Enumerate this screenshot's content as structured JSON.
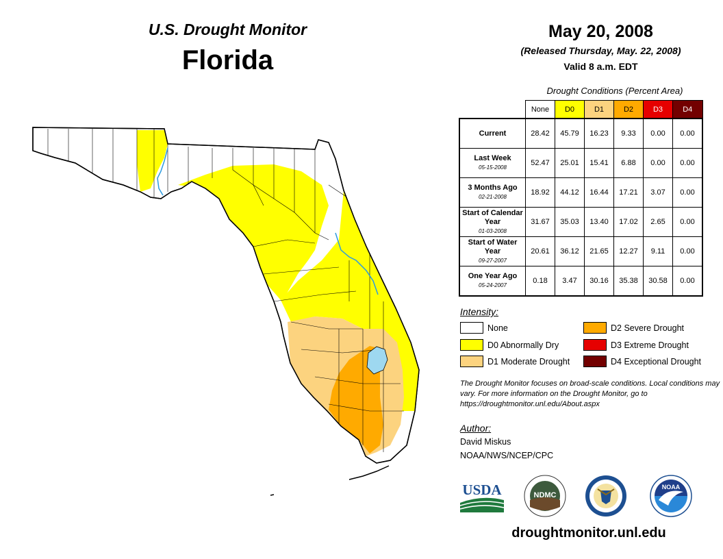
{
  "header": {
    "subtitle": "U.S. Drought Monitor",
    "state": "Florida",
    "date": "May 20, 2008",
    "released": "(Released Thursday, May. 22, 2008)",
    "valid": "Valid 8 a.m. EDT"
  },
  "table": {
    "caption": "Drought Conditions (Percent Area)",
    "columns": [
      "None",
      "D0",
      "D1",
      "D2",
      "D3",
      "D4"
    ],
    "rows": [
      {
        "label": "Current",
        "date": "",
        "values": [
          "28.42",
          "45.79",
          "16.23",
          "9.33",
          "0.00",
          "0.00"
        ]
      },
      {
        "label": "Last Week",
        "date": "05-15-2008",
        "values": [
          "52.47",
          "25.01",
          "15.41",
          "6.88",
          "0.00",
          "0.00"
        ]
      },
      {
        "label": "3 Months Ago",
        "date": "02-21-2008",
        "values": [
          "18.92",
          "44.12",
          "16.44",
          "17.21",
          "3.07",
          "0.00"
        ]
      },
      {
        "label": "Start of Calendar Year",
        "date": "01-03-2008",
        "values": [
          "31.67",
          "35.03",
          "13.40",
          "17.02",
          "2.65",
          "0.00"
        ]
      },
      {
        "label": "Start of Water Year",
        "date": "09-27-2007",
        "values": [
          "20.61",
          "36.12",
          "21.65",
          "12.27",
          "9.11",
          "0.00"
        ]
      },
      {
        "label": "One Year Ago",
        "date": "05-24-2007",
        "values": [
          "0.18",
          "3.47",
          "30.16",
          "35.38",
          "30.58",
          "0.00"
        ]
      }
    ]
  },
  "legend": {
    "title": "Intensity:",
    "items": [
      {
        "label": "None",
        "color": "#ffffff"
      },
      {
        "label": "D0 Abnormally Dry",
        "color": "#ffff00"
      },
      {
        "label": "D1 Moderate Drought",
        "color": "#fcd37f"
      },
      {
        "label": "D2 Severe Drought",
        "color": "#ffaa00"
      },
      {
        "label": "D3 Extreme Drought",
        "color": "#e60000"
      },
      {
        "label": "D4 Exceptional Drought",
        "color": "#730000"
      }
    ]
  },
  "note": "The Drought Monitor focuses on broad-scale conditions. Local conditions may vary. For more information on the Drought Monitor, go to https://droughtmonitor.unl.edu/About.aspx",
  "author": {
    "title": "Author:",
    "name": "David Miskus",
    "org": "NOAA/NWS/NCEP/CPC"
  },
  "logos": {
    "usda": "USDA",
    "ndmc": "NDMC",
    "noaa": "NOAA"
  },
  "url": "droughtmonitor.unl.edu",
  "colors": {
    "d0": "#ffff00",
    "d1": "#fcd37f",
    "d2": "#ffaa00",
    "water": "#9ed8f0",
    "river": "#2b9be0"
  }
}
